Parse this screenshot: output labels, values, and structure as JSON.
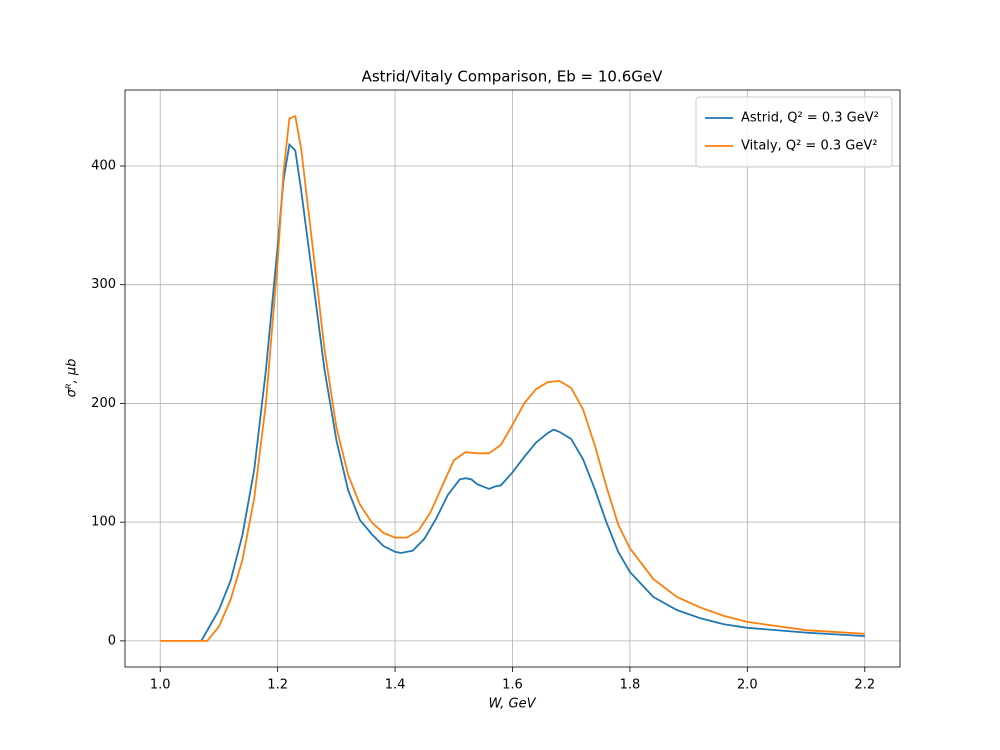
{
  "chart_data": {
    "type": "line",
    "title": "Astrid/Vitaly Comparison, Eb = 10.6GeV",
    "x_label": "W, GeV",
    "y_label": "σᴿ, μb",
    "xlim": [
      0.94,
      2.26
    ],
    "xticks": [
      {
        "value": 1.0,
        "label": "1.0"
      },
      1.2,
      1.4,
      1.6,
      1.8,
      {
        "value": 2.0,
        "label": "2.0"
      },
      2.2
    ],
    "ylim": [
      -22,
      464
    ],
    "yticks": [
      0,
      100,
      200,
      300,
      400
    ],
    "grid": true,
    "legend": "upper right",
    "series": [
      {
        "name": "Astrid, Q² = 0.3 GeV²",
        "color": "#1f77b4",
        "x": [
          1.07,
          1.1,
          1.12,
          1.14,
          1.16,
          1.18,
          1.2,
          1.21,
          1.22,
          1.23,
          1.24,
          1.26,
          1.28,
          1.3,
          1.32,
          1.34,
          1.36,
          1.38,
          1.4,
          1.41,
          1.43,
          1.45,
          1.47,
          1.49,
          1.51,
          1.52,
          1.53,
          1.54,
          1.56,
          1.57,
          1.58,
          1.6,
          1.62,
          1.64,
          1.66,
          1.67,
          1.68,
          1.7,
          1.72,
          1.74,
          1.76,
          1.78,
          1.8,
          1.84,
          1.88,
          1.92,
          1.96,
          2.0,
          2.1,
          2.2
        ],
        "values": [
          0,
          26,
          51,
          89,
          144,
          228,
          333,
          388,
          418,
          413,
          380,
          304,
          228,
          169,
          127,
          102,
          90,
          80,
          75,
          74,
          76,
          86,
          103,
          123,
          136,
          137,
          136,
          132,
          128,
          130,
          131,
          142,
          155,
          167,
          175,
          178,
          176,
          170,
          153,
          128,
          100,
          75,
          58,
          37,
          26,
          19,
          14,
          11,
          7,
          4
        ]
      },
      {
        "name": "Vitaly, Q² = 0.3 GeV²",
        "color": "#ff7f0e",
        "x": [
          1.0,
          1.08,
          1.1,
          1.12,
          1.14,
          1.16,
          1.18,
          1.2,
          1.21,
          1.22,
          1.23,
          1.24,
          1.26,
          1.28,
          1.3,
          1.32,
          1.34,
          1.36,
          1.38,
          1.4,
          1.42,
          1.44,
          1.46,
          1.48,
          1.5,
          1.52,
          1.54,
          1.56,
          1.58,
          1.6,
          1.62,
          1.64,
          1.66,
          1.68,
          1.7,
          1.72,
          1.74,
          1.76,
          1.78,
          1.8,
          1.84,
          1.88,
          1.92,
          1.96,
          2.0,
          2.1,
          2.2
        ],
        "values": [
          0,
          0,
          12,
          35,
          68,
          120,
          200,
          320,
          395,
          440,
          442,
          415,
          330,
          245,
          180,
          140,
          115,
          100,
          91,
          87,
          87,
          93,
          108,
          130,
          152,
          159,
          158,
          158,
          165,
          182,
          200,
          212,
          218,
          219,
          213,
          195,
          165,
          130,
          98,
          78,
          52,
          37,
          28,
          21,
          16,
          9,
          6
        ]
      }
    ]
  }
}
